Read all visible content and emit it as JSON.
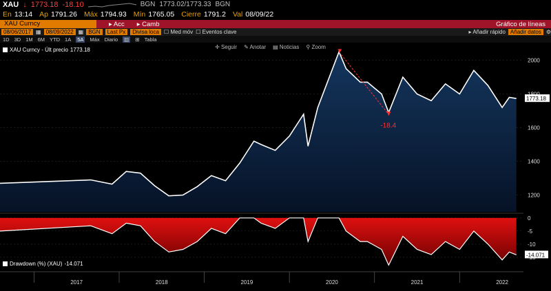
{
  "quote": {
    "ticker": "XAU",
    "price_prefix": "↓",
    "price": "1773.18",
    "change": "-18.10",
    "source": "BGN",
    "bid_ask": "1773.02/1773.33",
    "source2": "BGN"
  },
  "stats": {
    "time_label": "En",
    "time": "13:14",
    "open_label": "Ap",
    "open": "1791.26",
    "high_label": "Máx",
    "high": "1794.93",
    "low_label": "Mín",
    "low": "1765.05",
    "close_label": "Cierre",
    "close": "1791.2",
    "val_label": "Val",
    "val_date": "08/09/22"
  },
  "security_bar": {
    "security": "XAU Curncy",
    "actions_label": "Acc",
    "change_label": "Camb",
    "title": "Gráfico de líneas"
  },
  "controls": {
    "start_date": "08/06/2017",
    "end_date": "08/09/2022",
    "source": "BGN",
    "field": "Last Px",
    "currency": "Divisa loca",
    "avg_label": "Med móv",
    "events_label": "Eventos clave",
    "quick_add_label": "Añadir rápido",
    "add_data_label": "Añadir datos"
  },
  "periods": {
    "items": [
      "1D",
      "3D",
      "1M",
      "6M",
      "YTD",
      "1A",
      "5A",
      "Máx",
      "Diario",
      "",
      "",
      "Tabla"
    ],
    "selected": "5A"
  },
  "toolbox": {
    "items": [
      "Seguir",
      "Anotar",
      "Noticias",
      "Zoom"
    ]
  },
  "legend": {
    "price_series": "XAU Curncy - Últ precio",
    "price_value": "1773.18",
    "dd_series": "Drawdown (%) (XAU)",
    "dd_value": "-14.071"
  },
  "annotation": {
    "label": "-18.4"
  },
  "colors": {
    "line": "#ffffff",
    "area_top": "#14365e",
    "area_bottom": "#061226",
    "drawdown": "#e01010",
    "drawdown_dark": "#6a0000",
    "annotation": "#ff3030"
  },
  "chart_data": [
    {
      "type": "area",
      "series": [
        {
          "name": "XAU Curncy - Últ precio",
          "x": [
            "2017-06",
            "2017-09",
            "2017-12",
            "2018-02",
            "2018-04",
            "2018-06",
            "2018-08",
            "2018-10",
            "2018-12",
            "2019-02",
            "2019-04",
            "2019-06",
            "2019-08",
            "2019-09",
            "2019-11",
            "2020-01",
            "2020-03",
            "2020-03-20",
            "2020-05",
            "2020-08",
            "2020-09",
            "2020-11",
            "2020-12",
            "2021-02",
            "2021-03",
            "2021-05",
            "2021-07",
            "2021-09",
            "2021-11",
            "2022-01",
            "2022-03",
            "2022-05",
            "2022-07",
            "2022-08",
            "2022-09"
          ],
          "values": [
            1270,
            1290,
            1265,
            1340,
            1330,
            1255,
            1195,
            1200,
            1250,
            1315,
            1285,
            1390,
            1520,
            1500,
            1465,
            1550,
            1680,
            1490,
            1720,
            2050,
            1950,
            1870,
            1870,
            1800,
            1690,
            1900,
            1800,
            1760,
            1860,
            1800,
            1940,
            1850,
            1720,
            1780,
            1773
          ]
        }
      ],
      "ylim": [
        1100,
        2080
      ],
      "yticks": [
        1200,
        1400,
        1600,
        1800,
        2000
      ],
      "last_value": "1773.18"
    },
    {
      "type": "area",
      "series": [
        {
          "name": "Drawdown (%) (XAU)",
          "x": [
            "2017-06",
            "2017-09",
            "2017-12",
            "2018-02",
            "2018-04",
            "2018-06",
            "2018-08",
            "2018-10",
            "2018-12",
            "2019-02",
            "2019-04",
            "2019-06",
            "2019-08",
            "2019-09",
            "2019-11",
            "2020-01",
            "2020-03",
            "2020-03-20",
            "2020-05",
            "2020-08",
            "2020-09",
            "2020-11",
            "2020-12",
            "2021-02",
            "2021-03",
            "2021-05",
            "2021-07",
            "2021-09",
            "2021-11",
            "2022-01",
            "2022-03",
            "2022-05",
            "2022-07",
            "2022-08",
            "2022-09"
          ],
          "values": [
            -5,
            -3,
            -6,
            -2,
            -3,
            -9,
            -13,
            -12,
            -9,
            -4,
            -6,
            0,
            0,
            -2,
            -4,
            0,
            0,
            -9,
            0,
            0,
            -5,
            -9,
            -9,
            -12,
            -18,
            -7,
            -12,
            -14,
            -9,
            -12,
            -5,
            -10,
            -16,
            -13,
            -14.071
          ]
        }
      ],
      "ylim": [
        -20,
        1
      ],
      "yticks": [
        0,
        -5,
        -10,
        -15
      ],
      "last_value": "-14.071"
    }
  ],
  "xaxis": {
    "labels": [
      "2017",
      "2018",
      "2019",
      "2020",
      "2021",
      "2022"
    ]
  }
}
